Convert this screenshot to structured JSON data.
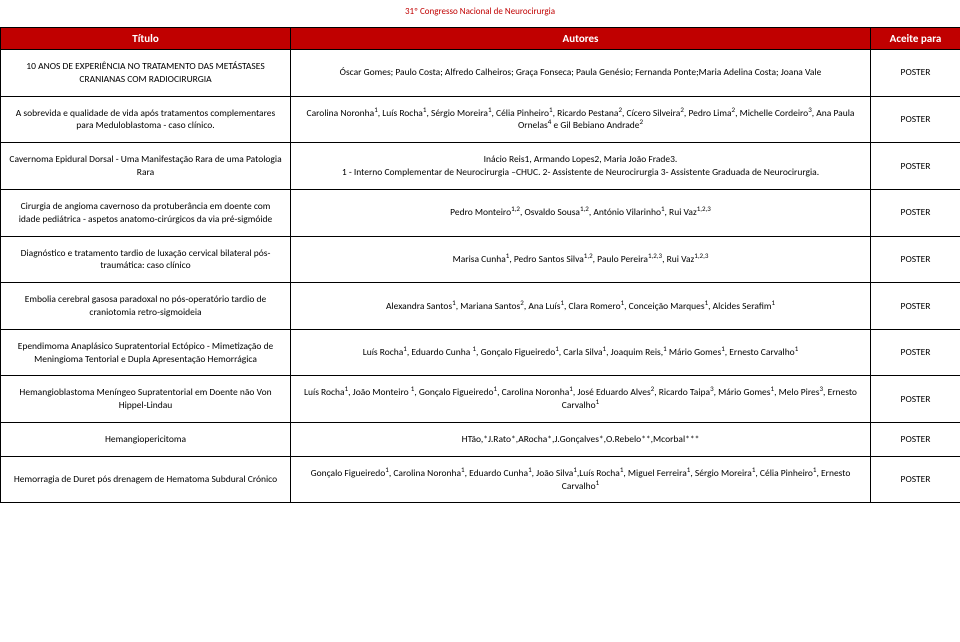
{
  "header": {
    "congress_title": "31º Congresso Nacional de Neurocirurgia"
  },
  "table": {
    "columns": {
      "title": "Título",
      "authors": "Autores",
      "accept": "Aceite para"
    },
    "accept_label": "POSTER",
    "rows": [
      {
        "title": "10 ANOS DE EXPERIÊNCIA NO TRATAMENTO DAS METÁSTASES CRANIANAS COM RADIOCIRURGIA",
        "authors_html": "Óscar Gomes; Paulo Costa; Alfredo Calheiros; Graça Fonseca; Paula Genésio; Fernanda Ponte;Maria Adelina Costa; Joana Vale"
      },
      {
        "title": "A sobrevida e qualidade de vida após tratamentos complementares para Meduloblastoma - caso clínico.",
        "authors_html": "Carolina Noronha<sup>1</sup>, Luís Rocha<sup>1</sup>, Sérgio Moreira<sup>1</sup>, Célia Pinheiro<sup>1</sup>, Ricardo Pestana<sup>2</sup>, Cícero Silveira<sup>2</sup>, Pedro Lima<sup>2</sup>, Michelle Cordeiro<sup>3</sup>, Ana Paula Ornelas<sup>4</sup> e Gil Bebiano Andrade<sup>2</sup>"
      },
      {
        "title": "Cavernoma Epidural Dorsal - Uma Manifestação Rara de uma Patologia Rara",
        "authors_html": "Inácio Reis1, Armando Lopes2, Maria João Frade3.<br>1 - Interno Complementar de Neurocirurgia –CHUC. 2- Assistente de Neurocirurgia 3- Assistente Graduada de Neurocirurgia."
      },
      {
        "title": "Cirurgia de angioma cavernoso da protuberância em doente com idade pediátrica - aspetos anatomo-cirúrgicos da via pré-sigmóide",
        "authors_html": "Pedro Monteiro<sup>1,2</sup>, Osvaldo Sousa<sup>1,2</sup>, António Vilarinho<sup>1</sup>, Rui Vaz<sup>1,2,3</sup>"
      },
      {
        "title": "Diagnóstico e tratamento tardio de luxação cervical bilateral pós-traumática: caso clínico",
        "authors_html": "Marisa Cunha<sup>1</sup>, Pedro Santos Silva<sup>1,2</sup>, Paulo Pereira<sup>1,2,3</sup>, Rui Vaz<sup>1,2,3</sup>"
      },
      {
        "title": "Embolia cerebral gasosa paradoxal no pós-operatório tardio de craniotomia retro-sigmoideia",
        "authors_html": "Alexandra Santos<sup>1</sup>, Mariana Santos<sup>2</sup>, Ana Luís<sup>1</sup>, Clara Romero<sup>1</sup>, Conceição Marques<sup>1</sup>, Alcides Serafim<sup>1</sup>"
      },
      {
        "title": "Ependimoma Anaplásico Supratentorial Ectópico - Mimetização de Meningioma Tentorial e Dupla Apresentação Hemorrágica",
        "authors_html": "Luís Rocha<sup>1</sup>, Eduardo Cunha <sup>1</sup>, Gonçalo Figueiredo<sup>1</sup>, Carla Silva<sup>1</sup>, Joaquim Reis,<sup>1</sup> Mário Gomes<sup>1</sup>, Ernesto Carvalho<sup>1</sup>"
      },
      {
        "title": "Hemangioblastoma Meníngeo Supratentorial em Doente não Von Hippel-Lindau",
        "authors_html": "Luís Rocha<sup>1</sup>, João Monteiro <sup>1</sup>, Gonçalo Figueiredo<sup>1</sup>, Carolina Noronha<sup>1</sup>, José Eduardo Alves<sup>2</sup>, Ricardo Taipa<sup>3</sup>, Mário Gomes<sup>1</sup>, Melo Pires<sup>3</sup>, Ernesto Carvalho<sup>1</sup>"
      },
      {
        "title": "Hemangiopericitoma",
        "authors_html": "HTão,*J.Rato*,ARocha*,J.Gonçalves*,O.Rebelo**,Mcorbal***"
      },
      {
        "title": "Hemorragia de Duret pós drenagem de Hematoma Subdural Crónico",
        "authors_html": "Gonçalo Figueiredo<sup>1</sup>, Carolina Noronha<sup>1</sup>, Eduardo Cunha<sup>1</sup>, João Silva<sup>1</sup>,Luís Rocha<sup>1</sup>, Miguel Ferreira<sup>1</sup>, Sérgio Moreira<sup>1</sup>, Célia Pinheiro<sup>1</sup>, Ernesto Carvalho<sup>1</sup>"
      }
    ]
  },
  "colors": {
    "header_red": "#c00000",
    "border": "#000000",
    "text": "#000000",
    "bg": "#ffffff"
  }
}
